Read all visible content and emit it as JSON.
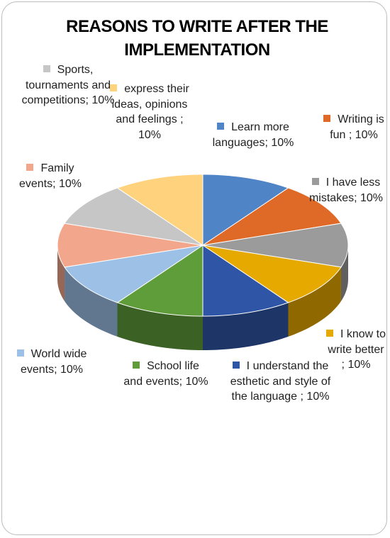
{
  "chart_data": {
    "type": "pie",
    "title": "REASONS TO WRITE AFTER THE IMPLEMENTATION",
    "categories": [
      "Learn more languages;",
      "Writing is fun ;",
      "I have less mistakes;",
      "I know to write better ;",
      "I understand the esthetic and style of the language ;",
      "School life and events;",
      "World wide events;",
      "Family events;",
      "Sports, tournaments and competitions;",
      "express their ideas, opinions and feelings ;"
    ],
    "values": [
      10,
      10,
      10,
      10,
      10,
      10,
      10,
      10,
      10,
      10
    ],
    "value_labels": [
      "10%",
      "10%",
      "10%",
      "10%",
      "10%",
      "10%",
      "10%",
      "10%",
      "10%",
      "10%"
    ],
    "colors": [
      "#4f85c6",
      "#df6a28",
      "#9b9b9b",
      "#e6a900",
      "#2f56a6",
      "#5f9d3b",
      "#9cc0e6",
      "#f2a68b",
      "#c6c6c6",
      "#ffd27e"
    ],
    "three_d": true
  }
}
